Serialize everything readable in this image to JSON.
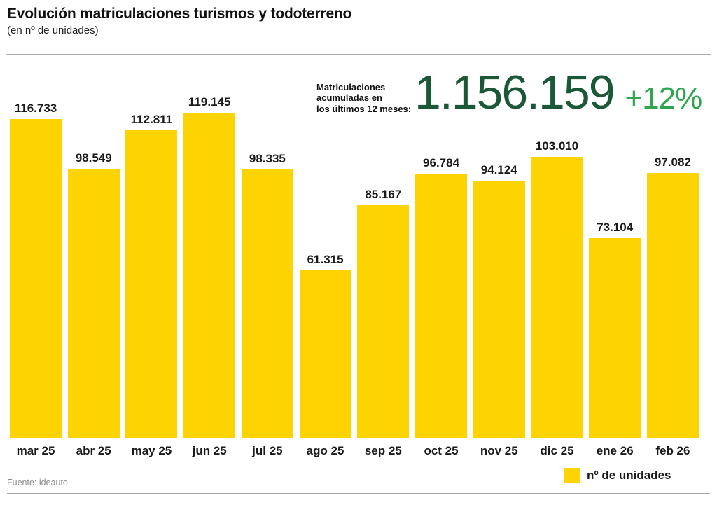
{
  "header": {
    "title": "Evolución matriculaciones turismos y todoterreno",
    "subtitle": "(en nº de unidades)"
  },
  "summary": {
    "label": "Matriculaciones\nacumuladas en\nlos últimos 12 meses:",
    "total": "1.156.159",
    "change": "+12%"
  },
  "footer": {
    "source": "Fuente: ideauto",
    "legend_label": "nº de unidades"
  },
  "colors": {
    "bar": "#fdd302",
    "total_number": "#1b5837",
    "change_percent": "#2fa64d"
  },
  "chart_data": {
    "type": "bar",
    "title": "Evolución matriculaciones turismos y todoterreno (en nº de unidades)",
    "xlabel": "",
    "ylabel": "nº de unidades",
    "categories": [
      "mar 25",
      "abr 25",
      "may 25",
      "jun 25",
      "jul 25",
      "ago 25",
      "sep 25",
      "oct 25",
      "nov 25",
      "dic 25",
      "ene 26",
      "feb 26"
    ],
    "values": [
      116733,
      98549,
      112811,
      119145,
      98335,
      61315,
      85167,
      96784,
      94124,
      103010,
      73104,
      97082
    ],
    "value_labels": [
      "116.733",
      "98.549",
      "112.811",
      "119.145",
      "98.335",
      "61.315",
      "85.167",
      "96.784",
      "94.124",
      "103.010",
      "73.104",
      "97.082"
    ],
    "ylim": [
      0,
      119145
    ],
    "grid": false,
    "legend_position": "bottom-right",
    "annotations": [
      "Matriculaciones acumuladas en los últimos 12 meses: 1.156.159 (+12%)"
    ]
  }
}
